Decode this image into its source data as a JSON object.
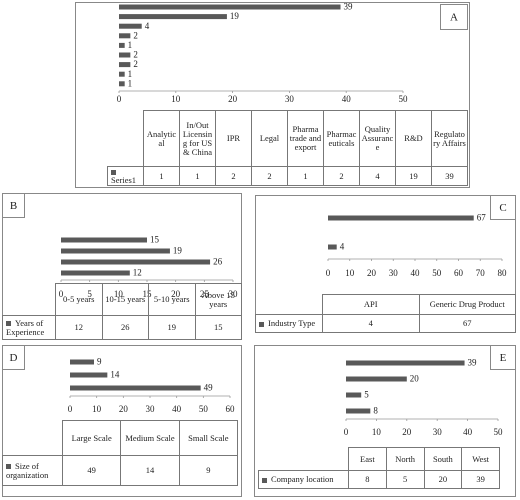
{
  "chart_data": [
    {
      "type": "bar",
      "label": "A",
      "categories": [
        "Analytical",
        "In/Out Licensing for US & China",
        "IPR",
        "Legal",
        "Pharma trade and export",
        "Pharmaceuticals",
        "Quality Assurance",
        "R&D",
        "Regulatory Affairs"
      ],
      "series": [
        {
          "name": "Series1",
          "color": "#595959",
          "values": [
            1,
            1,
            2,
            2,
            1,
            2,
            4,
            19,
            39
          ]
        }
      ],
      "xlim": [
        0,
        50
      ],
      "xticks": [
        0,
        10,
        20,
        30,
        40,
        50
      ]
    },
    {
      "type": "bar",
      "label": "B",
      "categories": [
        "0-5 years",
        "10-15 years",
        "5-10 years",
        "Above 15 years"
      ],
      "series": [
        {
          "name": "Years of Experience",
          "color": "#595959",
          "values": [
            12,
            26,
            19,
            15
          ]
        }
      ],
      "xlim": [
        0,
        30
      ],
      "xticks": [
        0,
        5,
        10,
        15,
        20,
        25,
        30
      ]
    },
    {
      "type": "bar",
      "label": "C",
      "categories": [
        "API",
        "Generic Drug Product"
      ],
      "series": [
        {
          "name": "Industry Type",
          "color": "#595959",
          "values": [
            4,
            67
          ]
        }
      ],
      "xlim": [
        0,
        80
      ],
      "xticks": [
        0,
        10,
        20,
        30,
        40,
        50,
        60,
        70,
        80
      ]
    },
    {
      "type": "bar",
      "label": "D",
      "categories": [
        "Large Scale",
        "Medium Scale",
        "Small Scale"
      ],
      "series": [
        {
          "name": "Size of organization",
          "color": "#595959",
          "values": [
            49,
            14,
            9
          ]
        }
      ],
      "xlim": [
        0,
        60
      ],
      "xticks": [
        0,
        10,
        20,
        30,
        40,
        50,
        60
      ]
    },
    {
      "type": "bar",
      "label": "E",
      "categories": [
        "East",
        "North",
        "South",
        "West"
      ],
      "series": [
        {
          "name": "Company location",
          "color": "#595959",
          "values": [
            8,
            5,
            20,
            39
          ]
        }
      ],
      "xlim": [
        0,
        50
      ],
      "xticks": [
        0,
        10,
        20,
        30,
        40,
        50
      ]
    }
  ]
}
